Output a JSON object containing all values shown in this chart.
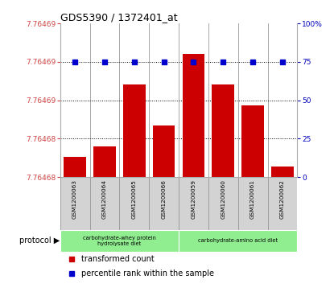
{
  "title": "GDS5390 / 1372401_at",
  "samples": [
    "GSM1200063",
    "GSM1200064",
    "GSM1200065",
    "GSM1200066",
    "GSM1200059",
    "GSM1200060",
    "GSM1200061",
    "GSM1200062"
  ],
  "red_values": [
    7.764682,
    7.764683,
    7.764689,
    7.764685,
    7.764692,
    7.764689,
    7.764687,
    7.764681
  ],
  "blue_values": [
    75,
    75,
    75,
    75,
    75,
    75,
    75,
    75
  ],
  "ymin": 7.76468,
  "ymax": 7.764695,
  "protocol_groups": [
    {
      "label": "carbohydrate-whey protein\nhydrolysate diet",
      "start": 0,
      "end": 4,
      "color": "#90ee90"
    },
    {
      "label": "carbohydrate-amino acid diet",
      "start": 4,
      "end": 8,
      "color": "#90ee90"
    }
  ],
  "legend_red": "transformed count",
  "legend_blue": "percentile rank within the sample",
  "bg_color": "#d3d3d3",
  "bar_color": "#cc0000",
  "blue_color": "#0000cc",
  "right_yticks": [
    0,
    25,
    50,
    75,
    100
  ],
  "right_ytick_labels": [
    "0",
    "25",
    "50",
    "75",
    "100%"
  ],
  "left_ytick_pcts": [
    0,
    25,
    50,
    75,
    100
  ]
}
